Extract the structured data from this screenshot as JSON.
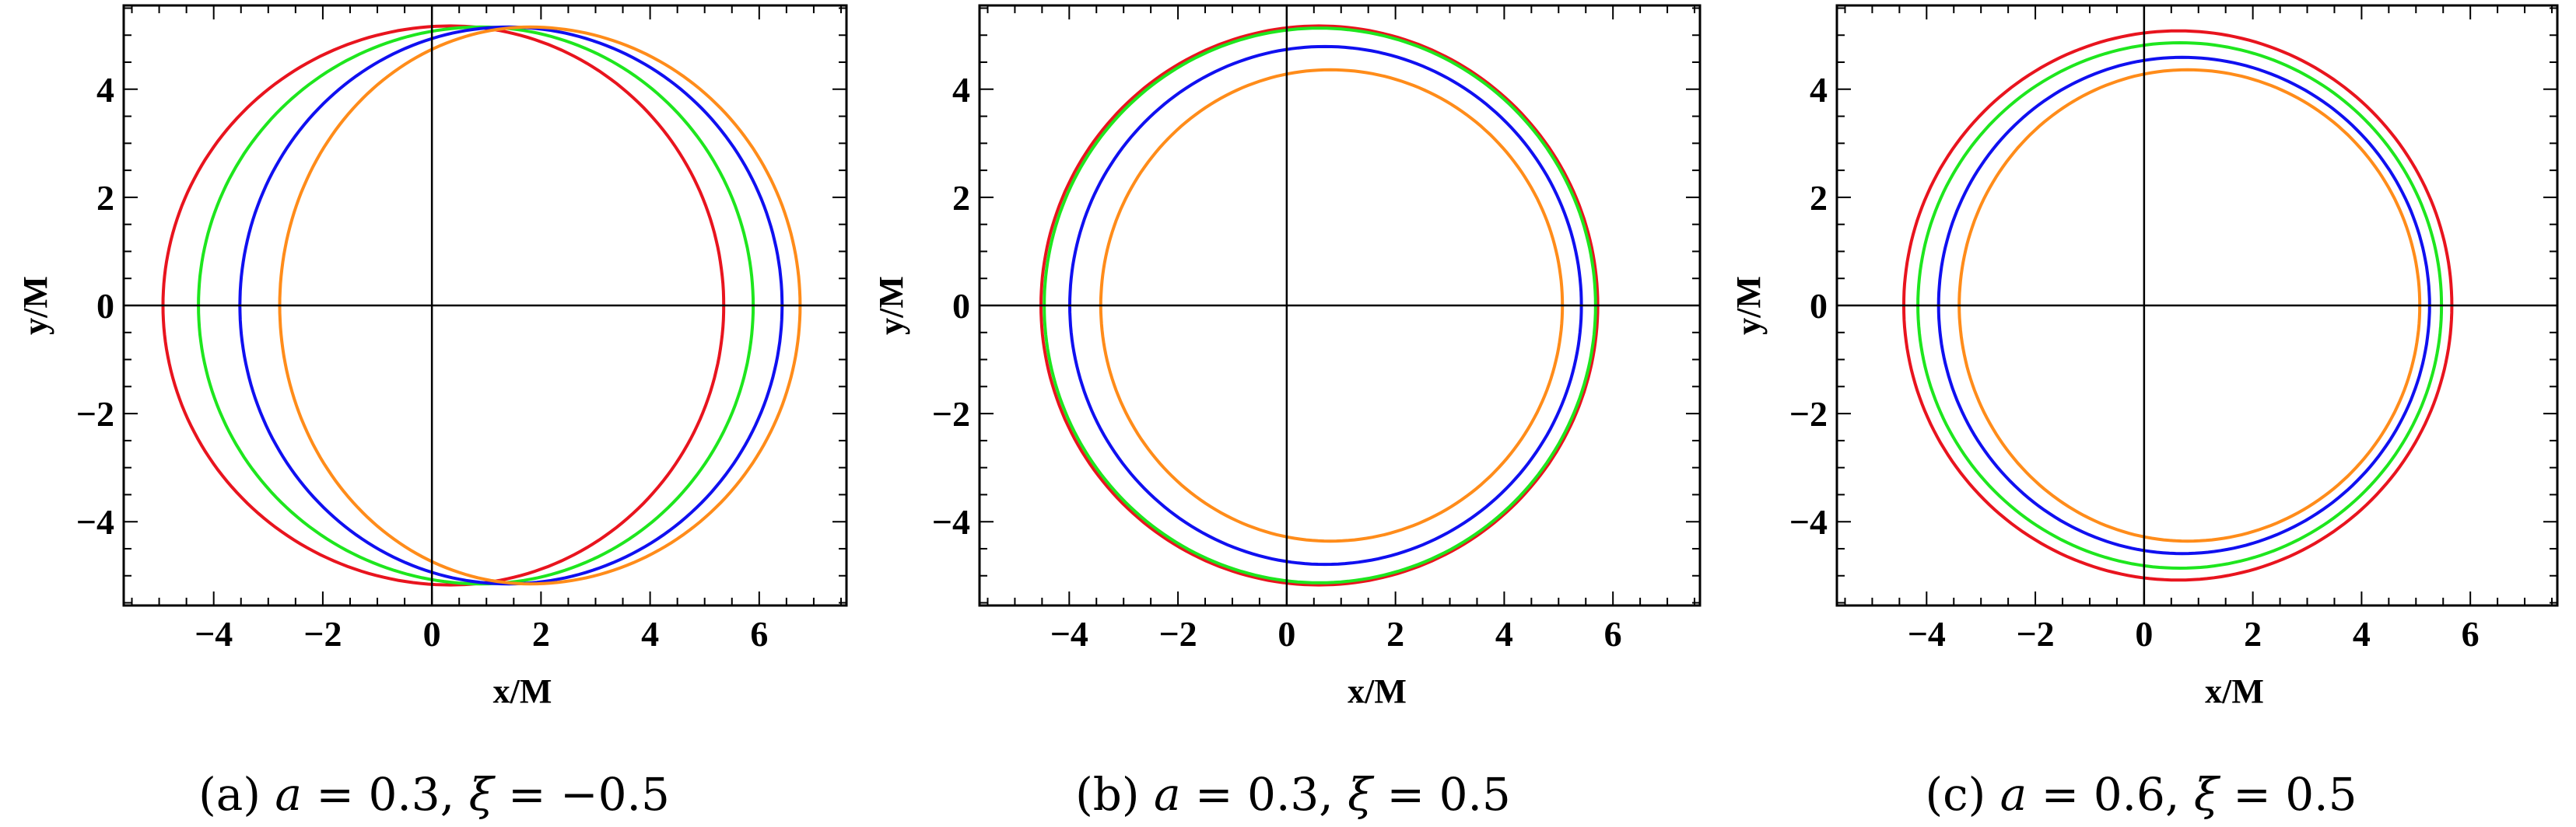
{
  "chart_data": [
    {
      "type": "line",
      "caption": {
        "label": "(a)",
        "sym1": "a",
        "val1": " = 0.3, ",
        "sym2": "ξ",
        "val2": " = −0.5"
      },
      "xlabel": "x/M",
      "ylabel": "y/M",
      "xlim": [
        -5.65,
        7.6
      ],
      "ylim": [
        -5.55,
        5.55
      ],
      "xticks": [
        -4,
        -2,
        0,
        2,
        4,
        6
      ],
      "yticks": [
        -4,
        -2,
        0,
        2,
        4
      ],
      "xtick_labels": [
        "−4",
        "−2",
        "0",
        "2",
        "4",
        "6"
      ],
      "ytick_labels": [
        "−4",
        "−2",
        "0",
        "2",
        "4"
      ],
      "grid": false,
      "series": [
        {
          "color": "#e8141e",
          "x_min": -4.93,
          "x_max": 5.35,
          "x_at_y_max": 0.34,
          "y_max": 5.17
        },
        {
          "color": "#1ee61e",
          "x_min": -4.28,
          "x_max": 5.89,
          "x_at_y_max": 0.9,
          "y_max": 5.15
        },
        {
          "color": "#1010f0",
          "x_min": -3.52,
          "x_max": 6.42,
          "x_at_y_max": 1.4,
          "y_max": 5.15
        },
        {
          "color": "#ff8c1a",
          "x_min": -2.79,
          "x_max": 6.75,
          "x_at_y_max": 1.8,
          "y_max": 5.15
        }
      ]
    },
    {
      "type": "line",
      "caption": {
        "label": "(b)",
        "sym1": "a",
        "val1": " = 0.3, ",
        "sym2": "ξ",
        "val2": " = 0.5"
      },
      "xlabel": "x/M",
      "ylabel": "y/M",
      "xlim": [
        -5.65,
        7.6
      ],
      "ylim": [
        -5.55,
        5.55
      ],
      "xticks": [
        -4,
        -2,
        0,
        2,
        4,
        6
      ],
      "yticks": [
        -4,
        -2,
        0,
        2,
        4
      ],
      "xtick_labels": [
        "−4",
        "−2",
        "0",
        "2",
        "4",
        "6"
      ],
      "ytick_labels": [
        "−4",
        "−2",
        "0",
        "2",
        "4"
      ],
      "grid": false,
      "series": [
        {
          "color": "#e8141e",
          "x_min": -4.52,
          "x_max": 5.72,
          "x_at_y_max": 0.59,
          "y_max": 5.17
        },
        {
          "color": "#1ee61e",
          "x_min": -4.46,
          "x_max": 5.68,
          "x_at_y_max": 0.6,
          "y_max": 5.13
        },
        {
          "color": "#1010f0",
          "x_min": -3.99,
          "x_max": 5.42,
          "x_at_y_max": 0.7,
          "y_max": 4.79
        },
        {
          "color": "#ff8c1a",
          "x_min": -3.42,
          "x_max": 5.07,
          "x_at_y_max": 0.8,
          "y_max": 4.36
        }
      ]
    },
    {
      "type": "line",
      "caption": {
        "label": "(c)",
        "sym1": "a",
        "val1": " = 0.6, ",
        "sym2": "ξ",
        "val2": " = 0.5"
      },
      "xlabel": "x/M",
      "ylabel": "y/M",
      "xlim": [
        -5.65,
        7.6
      ],
      "ylim": [
        -5.55,
        5.55
      ],
      "xticks": [
        -4,
        -2,
        0,
        2,
        4,
        6
      ],
      "yticks": [
        -4,
        -2,
        0,
        2,
        4
      ],
      "xtick_labels": [
        "−4",
        "−2",
        "0",
        "2",
        "4",
        "6"
      ],
      "ytick_labels": [
        "−4",
        "−2",
        "0",
        "2",
        "4"
      ],
      "grid": false,
      "series": [
        {
          "color": "#e8141e",
          "x_min": -4.42,
          "x_max": 5.66,
          "x_at_y_max": 0.63,
          "y_max": 5.08
        },
        {
          "color": "#1ee61e",
          "x_min": -4.16,
          "x_max": 5.47,
          "x_at_y_max": 0.66,
          "y_max": 4.86
        },
        {
          "color": "#1010f0",
          "x_min": -3.78,
          "x_max": 5.25,
          "x_at_y_max": 0.7,
          "y_max": 4.59
        },
        {
          "color": "#ff8c1a",
          "x_min": -3.4,
          "x_max": 5.07,
          "x_at_y_max": 0.8,
          "y_max": 4.36
        }
      ]
    }
  ]
}
